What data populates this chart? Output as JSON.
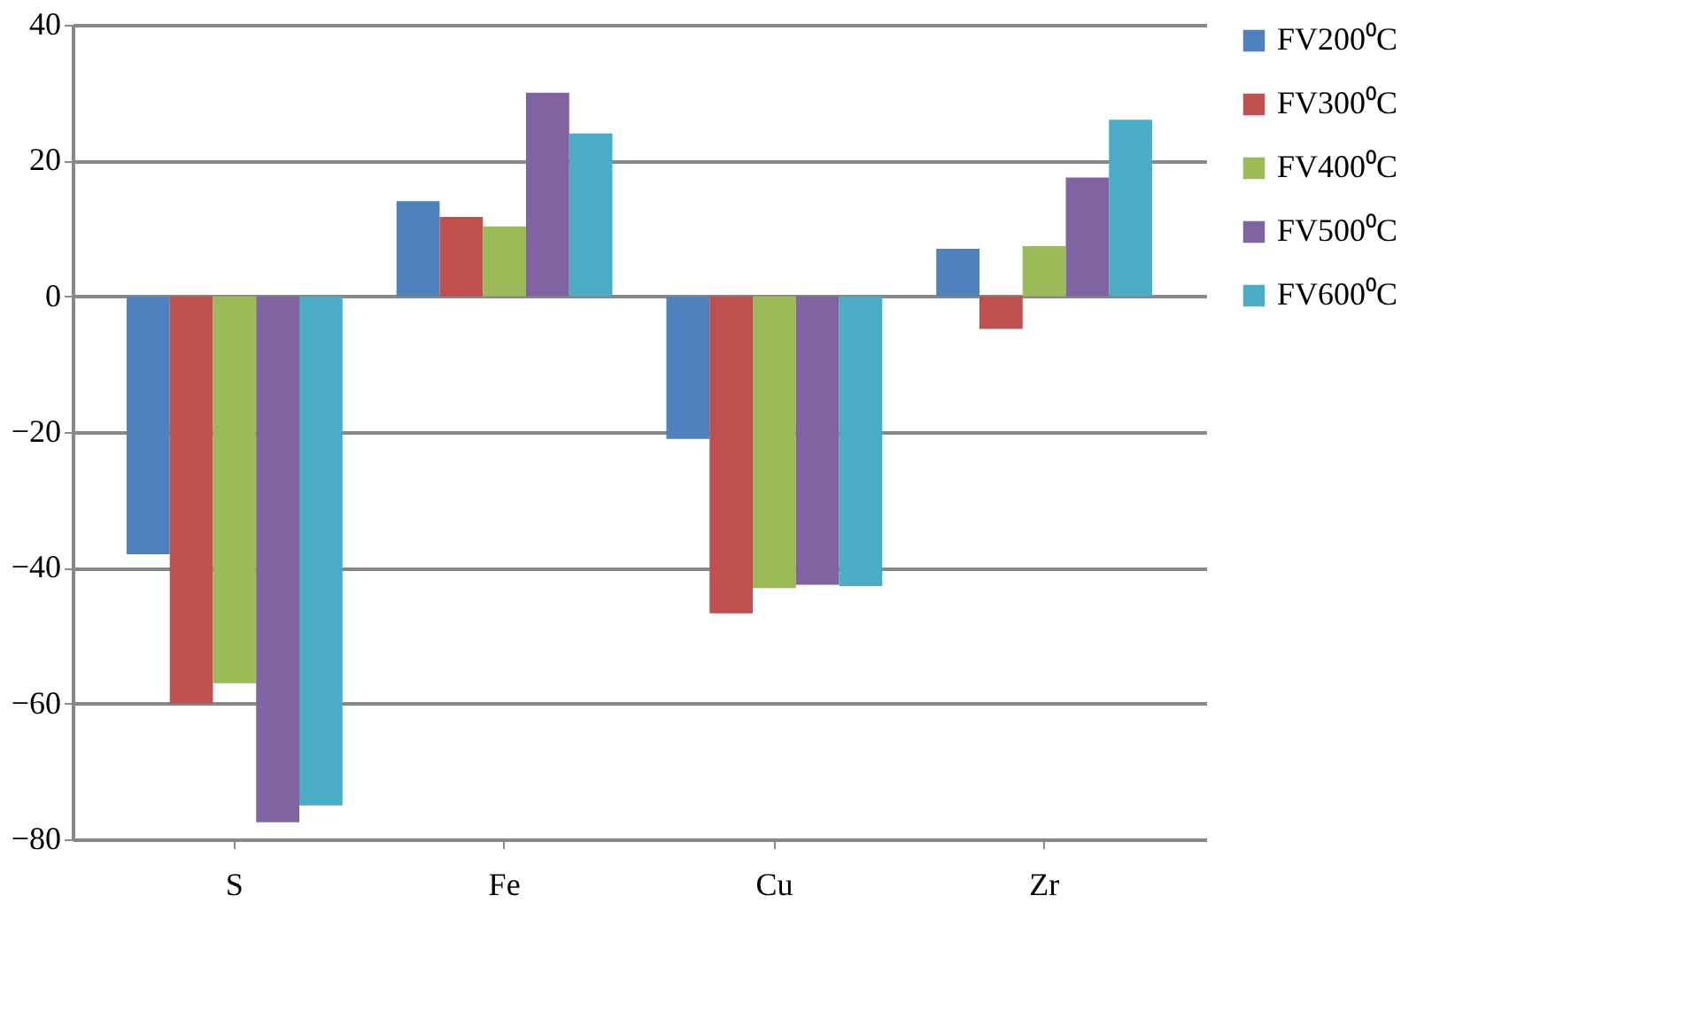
{
  "chart_data": {
    "type": "bar",
    "categories": [
      "S",
      "Fe",
      "Cu",
      "Zr"
    ],
    "series": [
      {
        "name": "FV200⁰C",
        "color": "#4f81bd",
        "values": [
          -38,
          14,
          -21,
          7
        ]
      },
      {
        "name": "FV300⁰C",
        "color": "#c0504d",
        "values": [
          -60,
          11.7,
          -46.7,
          -4.8
        ]
      },
      {
        "name": "FV400⁰C",
        "color": "#9bbb59",
        "values": [
          -57,
          10.3,
          -43,
          7.4
        ]
      },
      {
        "name": "FV500⁰C",
        "color": "#8064a2",
        "values": [
          -77.5,
          30,
          -42.5,
          17.5
        ]
      },
      {
        "name": "FV600⁰C",
        "color": "#4bacc6",
        "values": [
          -75,
          24,
          -42.7,
          26
        ]
      }
    ],
    "ylim": [
      -80,
      40
    ],
    "yticks": [
      -80,
      -60,
      -40,
      -20,
      0,
      20,
      40
    ],
    "grid": "y",
    "legend": "right"
  }
}
